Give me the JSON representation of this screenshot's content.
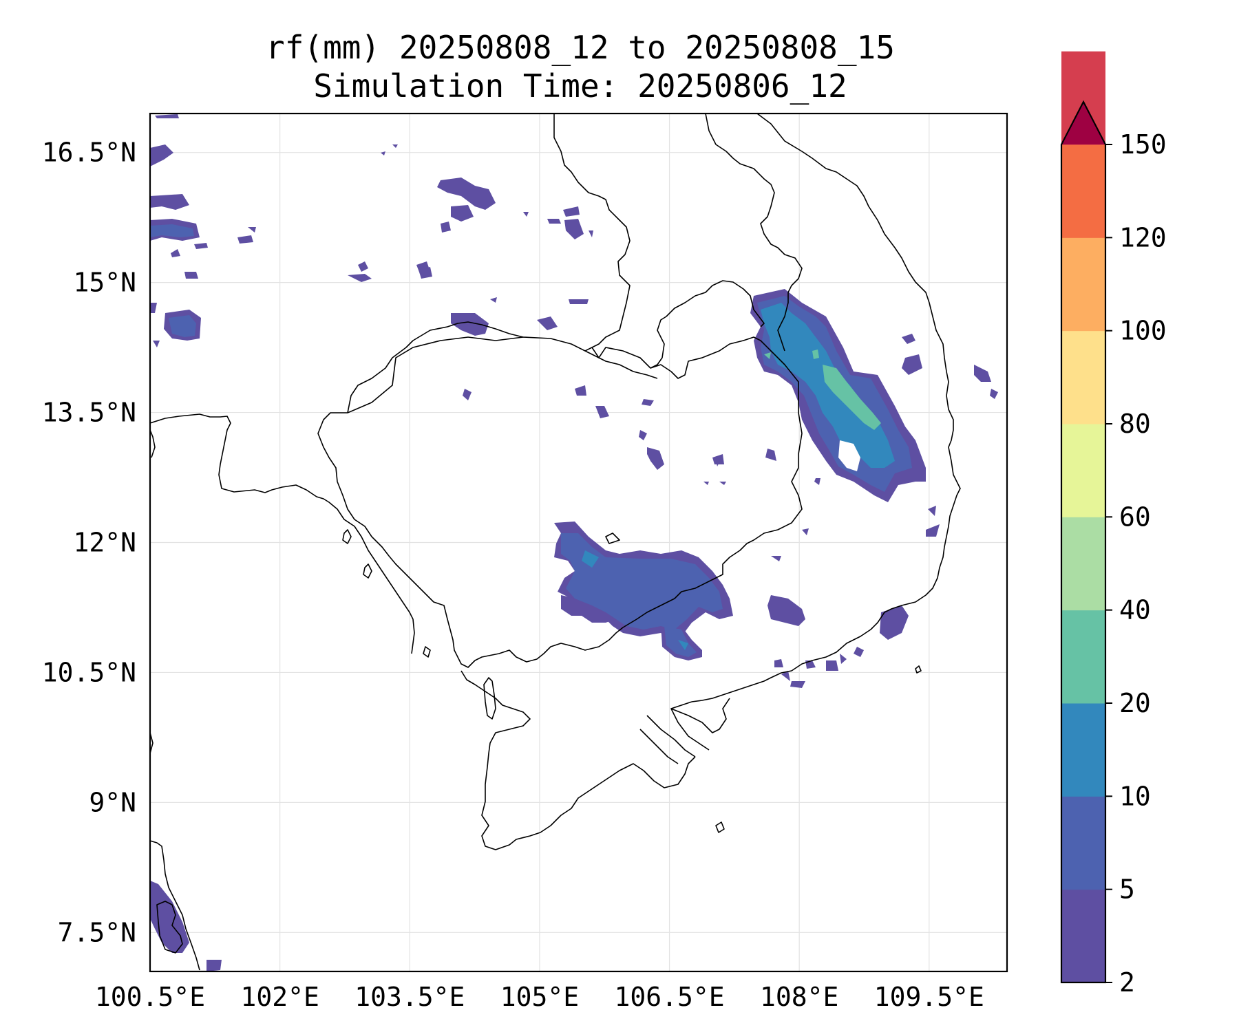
{
  "map": {
    "title_line1": "rf(mm) 20250808_12 to 20250808_15",
    "title_line2": "Simulation Time: 20250806_12",
    "lon_ticks": [
      "100.5°E",
      "102°E",
      "103.5°E",
      "105°E",
      "106.5°E",
      "108°E",
      "109.5°E"
    ],
    "lat_ticks": [
      "16.5°N",
      "15°N",
      "13.5°N",
      "12°N",
      "10.5°N",
      "9°N",
      "7.5°N"
    ],
    "extent": {
      "lon_min": 100.5,
      "lon_max": 110.4,
      "lat_min": 7.05,
      "lat_max": 16.95
    },
    "grid": true
  },
  "colorbar": {
    "levels": [
      "2",
      "5",
      "10",
      "20",
      "40",
      "60",
      "80",
      "100",
      "120",
      "150"
    ],
    "colors": [
      "#5e4fa2",
      "#4d62b0",
      "#3288bd",
      "#66c2a5",
      "#abdda4",
      "#e6f598",
      "#fee08b",
      "#fdae61",
      "#f46d43",
      "#d53e4f"
    ],
    "extend_color": "#9e0142",
    "extend": "max"
  }
}
